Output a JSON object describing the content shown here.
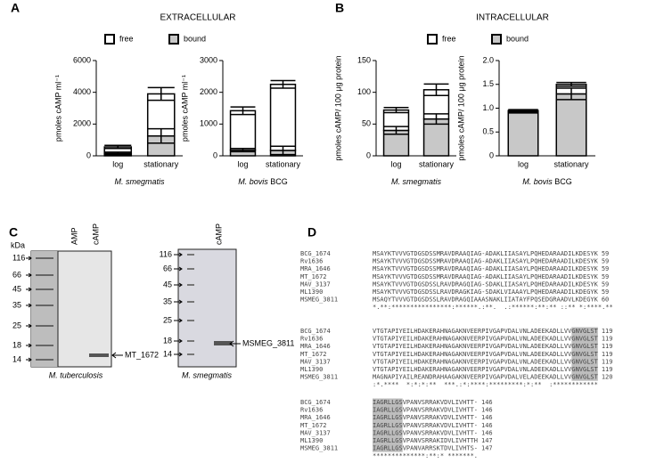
{
  "panels": {
    "A": {
      "label": "A",
      "title": "EXTRACELLULAR"
    },
    "B": {
      "label": "B",
      "title": "INTRACELLULAR"
    },
    "C": {
      "label": "C"
    },
    "D": {
      "label": "D"
    }
  },
  "chart_data": [
    {
      "type": "bar",
      "stacked": true,
      "categories": [
        "log",
        "stationary"
      ],
      "series": [
        {
          "name": "bound",
          "color": "#c8c8c8",
          "values": [
            150,
            1250
          ],
          "errors": [
            80,
            450
          ]
        },
        {
          "name": "free",
          "color": "#ffffff",
          "values": [
            410,
            2650
          ],
          "errors": [
            100,
            400
          ]
        }
      ],
      "ylim": [
        0,
        6000
      ],
      "yticks": [
        0,
        2000,
        4000,
        6000
      ],
      "ylabel": "pmoles cAMP ml⁻¹",
      "xlabel": "M. smegmatis"
    },
    {
      "type": "bar",
      "stacked": true,
      "categories": [
        "log",
        "stationary"
      ],
      "series": [
        {
          "name": "bound",
          "color": "#c8c8c8",
          "values": [
            180,
            170
          ],
          "errors": [
            50,
            130
          ]
        },
        {
          "name": "free",
          "color": "#ffffff",
          "values": [
            1240,
            2080
          ],
          "errors": [
            120,
            120
          ]
        }
      ],
      "ylim": [
        0,
        3000
      ],
      "yticks": [
        0,
        1000,
        2000,
        3000
      ],
      "ylabel": "pmoles cAMP ml⁻¹",
      "xlabel": "M. bovis",
      "xlabel_suffix": "BCG"
    },
    {
      "type": "bar",
      "stacked": true,
      "categories": [
        "log",
        "stationary"
      ],
      "series": [
        {
          "name": "bound",
          "color": "#c8c8c8",
          "values": [
            40,
            58
          ],
          "errors": [
            6,
            8
          ]
        },
        {
          "name": "free",
          "color": "#ffffff",
          "values": [
            32,
            46
          ],
          "errors": [
            4,
            9
          ]
        }
      ],
      "ylim": [
        0,
        150
      ],
      "yticks": [
        0,
        50,
        100,
        150
      ],
      "ylabel": "pmoles cAMP/ 100 μg protein",
      "xlabel": "M. smegmatis"
    },
    {
      "type": "bar",
      "stacked": true,
      "categories": [
        "log",
        "stationary"
      ],
      "series": [
        {
          "name": "bound",
          "color": "#c8c8c8",
          "values": [
            0.92,
            1.3
          ],
          "errors": [
            0.02,
            0.12
          ]
        },
        {
          "name": "free",
          "color": "#ffffff",
          "values": [
            0.03,
            0.2
          ],
          "errors": [
            0.02,
            0.04
          ]
        }
      ],
      "ylim": [
        0,
        2
      ],
      "yticks": [
        0,
        0.5,
        {
          "value": 1,
          "label": "1.0"
        },
        1.5,
        {
          "value": 2,
          "label": "2.0"
        }
      ],
      "ylabel": "pmoles cAMP/ 100 μg protein",
      "xlabel": "M. bovis",
      "xlabel_suffix": "BCG"
    }
  ],
  "gels": [
    {
      "unit": "kDa",
      "markers": [
        "116",
        "66",
        "45",
        "35",
        "25",
        "18",
        "14"
      ],
      "lanes": [
        "AMP",
        "cAMP"
      ],
      "band": "MT_1672",
      "organism": "M. tuberculosis"
    },
    {
      "markers": [
        "116",
        "66",
        "45",
        "35",
        "25",
        "18",
        "14"
      ],
      "lanes": [
        "cAMP"
      ],
      "band": "MSMEG_3811",
      "organism": "M. smegmatis"
    }
  ],
  "alignment": {
    "blocks": [
      {
        "rows": [
          [
            "BCG_1674",
            "MSAYKTVVVGTDGSDSSMRAVDRAAQIAG-ADAKLIIASAYLPQHEDARAADILKDESYK",
            "59"
          ],
          [
            "Rv1636",
            "MSAYKTVVVGTDGSDSSMRAVDRAAQIAG-ADAKLIIASAYLPQHEDARAADILKDESYK",
            "59"
          ],
          [
            "MRA_1646",
            "MSAYKTVVVGTDGSDSSMRAVDRAAQIAG-ADAKLIIASAYLPQHEDARAADILKDESYK",
            "59"
          ],
          [
            "MT_1672",
            "MSAYKTVVVGTDGSDSSMRAVDRAAQIAG-ADAKLIIASAYLPQHEDARAADILKDESYK",
            "59"
          ],
          [
            "MAV_3137",
            "MSAYKTVVVGTDGSDSSLRAVDRAGQIAG-SDAKLIIASAYLPQHEDARAADILKDESYK",
            "59"
          ],
          [
            "ML1390",
            "MSAYKTVVVGTDGSDSSLRAVDRAGKIAG-SDAKLVIAAAYLPQHEDARAADILKDEGYK",
            "59"
          ],
          [
            "MSMEG_3811",
            "MSAQYTVVVGTDGSDSSLRAVDRAGQIAAASNAKLIIATAYFPQSEDGRAADVLKDEGYK",
            "60"
          ]
        ],
        "consensus": "*.**:****************:******.:**.  .:******:**:** ::** *:****.**"
      },
      {
        "rows": [
          [
            "BCG_1674",
            "VTGTAPIYEILHDAKERAHNAGAKNVEERPIVGAPVDALVNLADEEKADLLVVGNVGLST",
            "119"
          ],
          [
            "Rv1636",
            "VTGTAPIYEILHDAKERAHNAGAKNVEERPIVGAPVDALVNLADEEKADLLVVGNVGLST",
            "119"
          ],
          [
            "MRA_1646",
            "VTGTAPIYEILHDAKERAHNAGAKNVEERPIVGAPVDALVNLADEEKADLLVVGNVGLST",
            "119"
          ],
          [
            "MT_1672",
            "VTGTAPIYEILHDAKERAHNAGAKNVEERPIVGAPVDALVNLADEEKADLLVVGNVGLST",
            "119"
          ],
          [
            "MAV_3137",
            "VTGTAPIYEILHDAKERAHNAGAKNVEERPIVGAPVDALVNLADEEKADLLVVGNVGLST",
            "119"
          ],
          [
            "ML1390",
            "VTGTAPIYEILHDAKERAHNAGAKNVEERPIVGAPVDALVNLADEEKADLLVVGNVGLST",
            "119"
          ],
          [
            "MSMEG_3811",
            "MAGNAPIYAILREANDRAHAAGAKNVEERPIVGAPVDALVELADEEKADLLVVGNVGLST",
            "120"
          ]
        ],
        "consensus": ":*.****  *:*:*:**  ***.:*:****:*********:*:**  :************"
      },
      {
        "rows": [
          [
            "BCG_1674",
            "IAGRLLGSVPANVSRRAKVDVLIVHTT-",
            "146"
          ],
          [
            "Rv1636",
            "IAGRLLGSVPANVSRRAKVDVLIVHTT-",
            "146"
          ],
          [
            "MRA_1646",
            "IAGRLLGSVPANVSRRAKVDVLIVHTT-",
            "146"
          ],
          [
            "MT_1672",
            "IAGRLLGSVPANVSRRAKVDVLIVHTT-",
            "146"
          ],
          [
            "MAV_3137",
            "IAGRLLGSVPANVSRRAKVDVLIVHTT-",
            "146"
          ],
          [
            "ML1390",
            "IAGRLLGSVPANVSRRAKIDVLIVHTTH",
            "147"
          ],
          [
            "MSMEG_3811",
            "IAGRLLGSVPANVARRSKTDVLIVHTS-",
            "147"
          ]
        ],
        "consensus": "**************:**:* *******."
      }
    ]
  }
}
